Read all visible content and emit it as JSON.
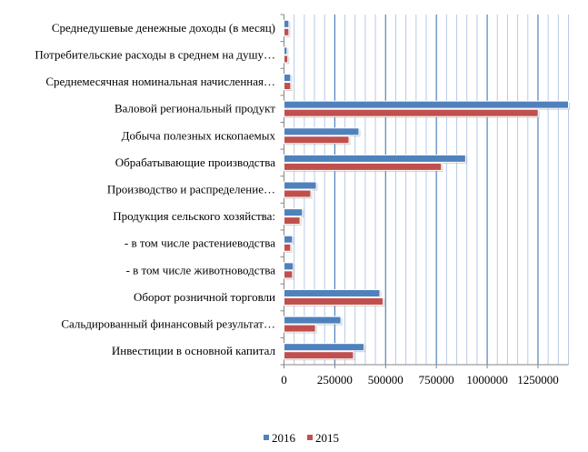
{
  "chart_data": {
    "type": "bar",
    "orientation": "horizontal",
    "categories": [
      "Среднедушевые денежные доходы (в месяц)",
      "Потребительские расходы в среднем на душу…",
      "Среднемесячная номинальная начисленная…",
      "Валовой региональный продукт",
      "Добыча полезных ископаемых",
      "Обрабатывающие производства",
      "Производство и распределение…",
      "Продукция сельского хозяйства:",
      "- в том числе растениеводства",
      "- в том числе животноводства",
      "Оборот розничной торговли",
      "Сальдированный финансовый результат…",
      "Инвестиции в основной капитал"
    ],
    "series": [
      {
        "name": "2016",
        "color": "#4f81bd",
        "values": [
          24000,
          15000,
          33000,
          1400000,
          369000,
          894000,
          159000,
          91000,
          42000,
          46000,
          472000,
          280000,
          394000
        ]
      },
      {
        "name": "2015",
        "color": "#c0504d",
        "values": [
          24000,
          19000,
          33000,
          1251000,
          320000,
          775000,
          132000,
          79000,
          33000,
          42000,
          488000,
          155000,
          342000
        ]
      }
    ],
    "xlim": [
      0,
      1400000
    ],
    "xticks": [
      "0",
      "250000",
      "500000",
      "750000",
      "1000000",
      "1250000"
    ],
    "xtick_values": [
      0,
      250000,
      500000,
      750000,
      1000000,
      1250000
    ],
    "minor_step": 50000,
    "grid": true,
    "legend_position": "bottom"
  }
}
